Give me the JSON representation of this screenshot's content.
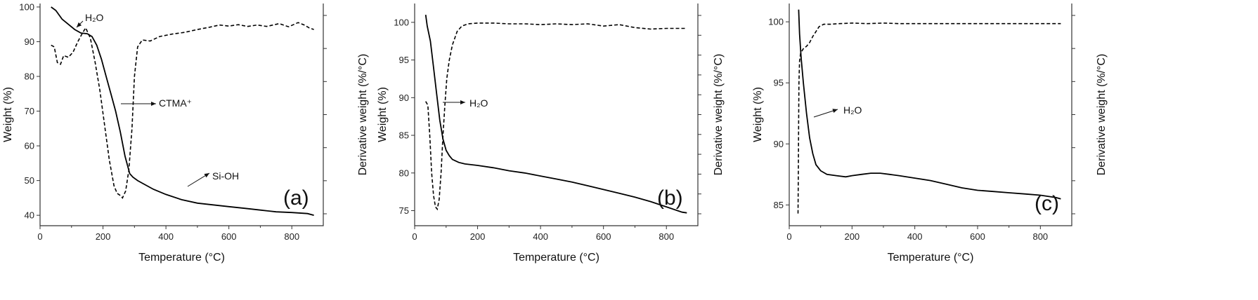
{
  "chart_data": [
    {
      "type": "line",
      "panel_label": "(a)",
      "xlabel": "Temperature (°C)",
      "ylabel": "Weight (%)",
      "y2label": "Derivative weight (%/°C)",
      "xlim": [
        0,
        900
      ],
      "ylim": [
        37,
        101
      ],
      "xticks": [
        0,
        200,
        400,
        600,
        800
      ],
      "yticks": [
        40,
        50,
        60,
        70,
        80,
        90,
        100
      ],
      "y2ticks_count": 7,
      "series": [
        {
          "style": "solid",
          "x": [
            35,
            50,
            70,
            90,
            110,
            130,
            150,
            165,
            180,
            195,
            210,
            225,
            240,
            255,
            270,
            285,
            295,
            310,
            330,
            360,
            400,
            450,
            500,
            550,
            600,
            650,
            700,
            750,
            800,
            850,
            870
          ],
          "y": [
            100,
            99,
            96.5,
            95,
            93.5,
            92.5,
            92.3,
            91.5,
            89,
            85,
            80,
            75,
            70,
            64,
            57,
            52,
            51,
            50,
            49,
            47.5,
            46,
            44.5,
            43.5,
            43,
            42.5,
            42,
            41.5,
            41,
            40.8,
            40.5,
            40
          ]
        },
        {
          "style": "dashed",
          "x": [
            35,
            45,
            55,
            65,
            75,
            90,
            105,
            120,
            135,
            145,
            160,
            175,
            190,
            205,
            220,
            235,
            245,
            255,
            262,
            272,
            282,
            292,
            300,
            310,
            325,
            350,
            380,
            420,
            460,
            500,
            540,
            570,
            600,
            630,
            660,
            690,
            720,
            760,
            790,
            820,
            840,
            855,
            870
          ],
          "y": [
            89,
            88.5,
            84,
            83.5,
            86,
            85.5,
            87,
            90,
            92.5,
            94,
            91,
            84,
            76,
            66,
            56,
            48.5,
            46.3,
            45.7,
            45,
            47,
            53,
            65,
            80,
            88.5,
            90.5,
            90.2,
            91.5,
            92.2,
            92.7,
            93.5,
            94.2,
            94.8,
            94.5,
            94.9,
            94.4,
            94.8,
            94.4,
            95.2,
            94.3,
            95.5,
            94.8,
            94,
            93.5
          ]
        }
      ],
      "annotations": [
        {
          "text": "H₂O",
          "x": 148,
          "y": 99.5,
          "arrow": true
        },
        {
          "text": "CTMA⁺",
          "x": 265,
          "y": 75.5,
          "arrow": true
        },
        {
          "text": "Si-OH",
          "x": 535,
          "y": 51.5,
          "arrow": true
        }
      ]
    },
    {
      "type": "line",
      "panel_label": "(b)",
      "xlabel": "Temperature (°C)",
      "ylabel": "Weight (%)",
      "y2label": "Derivative weight (%/°C)",
      "xlim": [
        0,
        900
      ],
      "ylim": [
        73,
        102.5
      ],
      "xticks": [
        0,
        200,
        400,
        600,
        800
      ],
      "yticks": [
        75,
        80,
        85,
        90,
        95,
        100
      ],
      "y2ticks_count": 11,
      "series": [
        {
          "style": "solid",
          "x": [
            35,
            40,
            50,
            60,
            70,
            80,
            90,
            100,
            110,
            120,
            140,
            160,
            200,
            250,
            300,
            350,
            400,
            450,
            500,
            550,
            600,
            650,
            700,
            750,
            800,
            850,
            865
          ],
          "y": [
            101,
            99.5,
            97.5,
            94,
            90.5,
            87,
            84.5,
            83,
            82.3,
            81.8,
            81.4,
            81.2,
            81,
            80.7,
            80.3,
            80,
            79.6,
            79.2,
            78.8,
            78.3,
            77.8,
            77.3,
            76.8,
            76.2,
            75.5,
            74.8,
            74.7
          ]
        },
        {
          "style": "dashed",
          "x": [
            35,
            42,
            48,
            54,
            60,
            66,
            72,
            78,
            84,
            90,
            96,
            102,
            110,
            120,
            135,
            150,
            170,
            200,
            250,
            300,
            350,
            400,
            450,
            500,
            550,
            600,
            650,
            700,
            750,
            800,
            850,
            865
          ],
          "y": [
            89.5,
            89,
            85,
            80,
            77,
            75.5,
            75.2,
            76.5,
            80,
            85,
            89,
            92.5,
            95,
            97,
            98.8,
            99.5,
            99.8,
            99.9,
            99.9,
            99.8,
            99.8,
            99.7,
            99.8,
            99.7,
            99.8,
            99.5,
            99.7,
            99.3,
            99.1,
            99.2,
            99.2,
            99.2
          ]
        }
      ],
      "annotations": [
        {
          "text": "H₂O",
          "x": 145,
          "y": 88.5,
          "arrow": true
        }
      ]
    },
    {
      "type": "line",
      "panel_label": "(c)",
      "xlabel": "Temperature (°C)",
      "ylabel": "Weight (%)",
      "y2label": "Derivative weight (%/°C)",
      "xlim": [
        0,
        900
      ],
      "ylim": [
        83.3,
        101.5
      ],
      "xticks": [
        0,
        200,
        400,
        600,
        800
      ],
      "yticks": [
        85,
        90,
        95,
        100
      ],
      "y2ticks_count": 7,
      "series": [
        {
          "style": "solid",
          "x": [
            30,
            33,
            38,
            45,
            55,
            65,
            75,
            85,
            100,
            120,
            150,
            180,
            200,
            230,
            260,
            290,
            320,
            350,
            400,
            450,
            500,
            550,
            600,
            650,
            700,
            750,
            800,
            850,
            865
          ],
          "y": [
            101,
            99,
            97,
            95,
            92.5,
            90.5,
            89.2,
            88.3,
            87.8,
            87.5,
            87.4,
            87.3,
            87.4,
            87.5,
            87.6,
            87.6,
            87.5,
            87.4,
            87.2,
            87,
            86.7,
            86.4,
            86.2,
            86.1,
            86,
            85.9,
            85.8,
            85.6,
            85.5
          ]
        },
        {
          "style": "dashed",
          "x": [
            28,
            29,
            30,
            31,
            33,
            36,
            40,
            45,
            55,
            65,
            75,
            85,
            95,
            110,
            130,
            160,
            200,
            250,
            300,
            350,
            400,
            450,
            500,
            550,
            600,
            650,
            700,
            750,
            800,
            850,
            865
          ],
          "y": [
            84.3,
            88,
            92,
            95,
            96.8,
            97.4,
            97.6,
            97.8,
            98,
            98.3,
            98.8,
            99.2,
            99.6,
            99.8,
            99.8,
            99.85,
            99.9,
            99.85,
            99.9,
            99.85,
            99.85,
            99.85,
            99.85,
            99.85,
            99.85,
            99.85,
            99.85,
            99.85,
            99.85,
            99.85,
            99.85
          ]
        }
      ],
      "annotations": [
        {
          "text": "H₂O",
          "x": 190,
          "y": 92.3,
          "arrow": true
        }
      ]
    }
  ]
}
